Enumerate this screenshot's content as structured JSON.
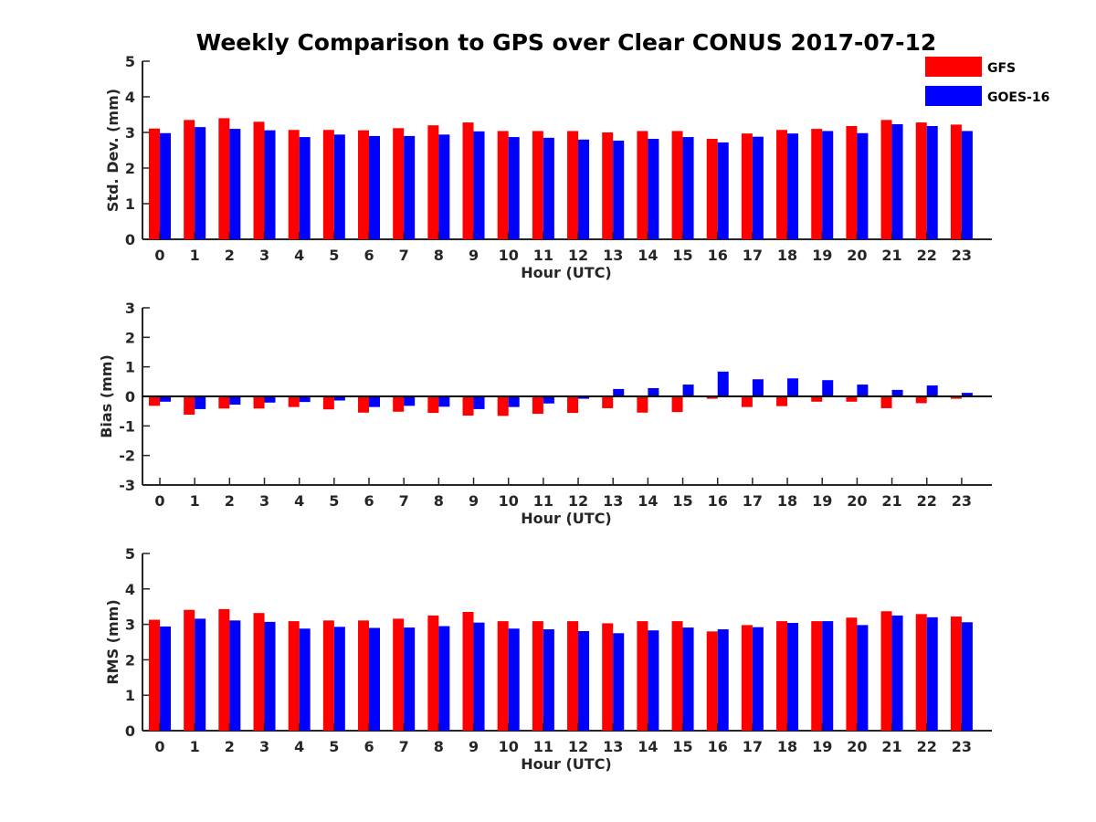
{
  "title": "Weekly Comparison to GPS over Clear CONUS 2017-07-12",
  "legend": {
    "placement": "top-right",
    "items": [
      {
        "label": "GFS",
        "color": "#ff0000"
      },
      {
        "label": "GOES-16",
        "color": "#0000ff"
      }
    ]
  },
  "chart_data": [
    {
      "type": "bar",
      "title": "Weekly Comparison to GPS over Clear CONUS 2017-07-12",
      "xlabel": "Hour (UTC)",
      "ylabel": "Std. Dev. (mm)",
      "ylim": [
        0,
        5
      ],
      "yticks": [
        0,
        1,
        2,
        3,
        4,
        5
      ],
      "categories": [
        "0",
        "1",
        "2",
        "3",
        "4",
        "5",
        "6",
        "7",
        "8",
        "9",
        "10",
        "11",
        "12",
        "13",
        "14",
        "15",
        "16",
        "17",
        "18",
        "19",
        "20",
        "21",
        "22",
        "23"
      ],
      "series": [
        {
          "name": "GFS",
          "color": "#ff0000",
          "values": [
            3.11,
            3.35,
            3.4,
            3.3,
            3.07,
            3.07,
            3.06,
            3.12,
            3.2,
            3.28,
            3.04,
            3.04,
            3.04,
            3.0,
            3.04,
            3.04,
            2.82,
            2.97,
            3.07,
            3.1,
            3.18,
            3.35,
            3.28,
            3.22
          ]
        },
        {
          "name": "GOES-16",
          "color": "#0000ff",
          "values": [
            2.98,
            3.15,
            3.1,
            3.06,
            2.87,
            2.94,
            2.9,
            2.9,
            2.94,
            3.03,
            2.87,
            2.85,
            2.8,
            2.77,
            2.82,
            2.87,
            2.72,
            2.88,
            2.97,
            3.04,
            2.98,
            3.23,
            3.18,
            3.04
          ]
        }
      ],
      "grid": false
    },
    {
      "type": "bar",
      "xlabel": "Hour (UTC)",
      "ylabel": "Bias (mm)",
      "ylim": [
        -3,
        3
      ],
      "yticks": [
        -3,
        -2,
        -1,
        0,
        1,
        2,
        3
      ],
      "categories": [
        "0",
        "1",
        "2",
        "3",
        "4",
        "5",
        "6",
        "7",
        "8",
        "9",
        "10",
        "11",
        "12",
        "13",
        "14",
        "15",
        "16",
        "17",
        "18",
        "19",
        "20",
        "21",
        "22",
        "23"
      ],
      "series": [
        {
          "name": "GFS",
          "color": "#ff0000",
          "values": [
            -0.32,
            -0.62,
            -0.41,
            -0.41,
            -0.36,
            -0.44,
            -0.55,
            -0.52,
            -0.56,
            -0.65,
            -0.66,
            -0.59,
            -0.56,
            -0.4,
            -0.55,
            -0.53,
            -0.08,
            -0.36,
            -0.33,
            -0.18,
            -0.18,
            -0.4,
            -0.23,
            -0.08
          ]
        },
        {
          "name": "GOES-16",
          "color": "#0000ff",
          "values": [
            -0.18,
            -0.43,
            -0.28,
            -0.21,
            -0.19,
            -0.14,
            -0.36,
            -0.32,
            -0.35,
            -0.43,
            -0.36,
            -0.24,
            -0.08,
            0.25,
            0.28,
            0.4,
            0.84,
            0.58,
            0.61,
            0.55,
            0.4,
            0.22,
            0.37,
            0.12
          ]
        }
      ],
      "grid": false
    },
    {
      "type": "bar",
      "xlabel": "Hour (UTC)",
      "ylabel": "RMS (mm)",
      "ylim": [
        0,
        5
      ],
      "yticks": [
        0,
        1,
        2,
        3,
        4,
        5
      ],
      "categories": [
        "0",
        "1",
        "2",
        "3",
        "4",
        "5",
        "6",
        "7",
        "8",
        "9",
        "10",
        "11",
        "12",
        "13",
        "14",
        "15",
        "16",
        "17",
        "18",
        "19",
        "20",
        "21",
        "22",
        "23"
      ],
      "series": [
        {
          "name": "GFS",
          "color": "#ff0000",
          "values": [
            3.13,
            3.41,
            3.43,
            3.32,
            3.09,
            3.11,
            3.11,
            3.16,
            3.25,
            3.35,
            3.09,
            3.09,
            3.09,
            3.03,
            3.09,
            3.09,
            2.8,
            2.98,
            3.09,
            3.09,
            3.19,
            3.37,
            3.29,
            3.22
          ]
        },
        {
          "name": "GOES-16",
          "color": "#0000ff",
          "values": [
            2.94,
            3.16,
            3.11,
            3.07,
            2.88,
            2.93,
            2.9,
            2.91,
            2.95,
            3.05,
            2.88,
            2.86,
            2.81,
            2.75,
            2.83,
            2.91,
            2.86,
            2.92,
            3.04,
            3.09,
            2.98,
            3.25,
            3.2,
            3.06
          ]
        }
      ],
      "grid": false
    }
  ]
}
